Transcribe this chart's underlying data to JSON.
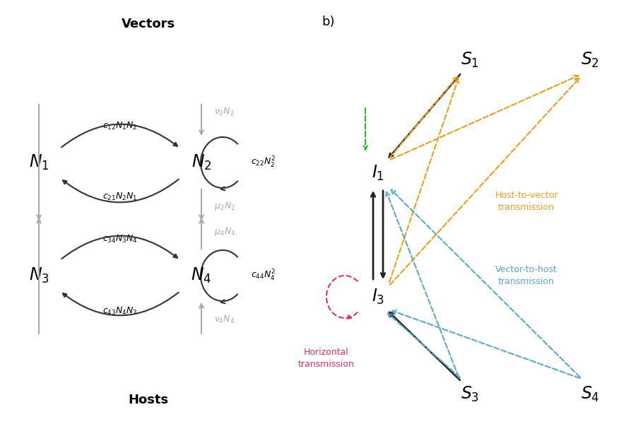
{
  "background_color": "#ffffff",
  "panel_a": {
    "title_vectors": "Vectors",
    "title_hosts": "Hosts",
    "gray_color": "#aaaaaa",
    "arrow_color": "#333333"
  },
  "panel_b": {
    "label": "b)",
    "orange_color": "#e8a020",
    "blue_color": "#5ba8c8",
    "green_color": "#2ab52a",
    "red_color": "#e03060",
    "black_color": "#222222"
  }
}
